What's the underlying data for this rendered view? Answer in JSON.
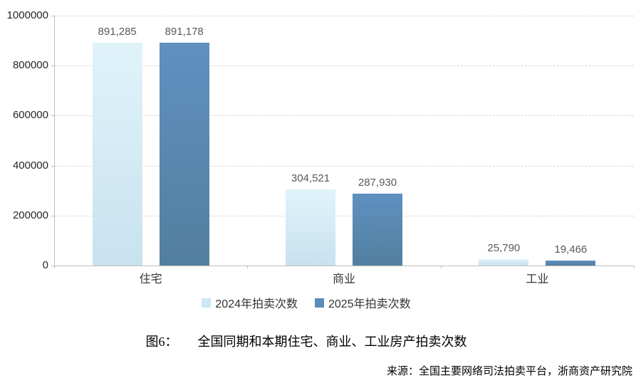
{
  "chart_data": {
    "type": "bar",
    "title": "图6：　全国同期和本期住宅、商业、工业房产拍卖次数",
    "caption_label": "图6：",
    "caption_text": "全国同期和本期住宅、商业、工业房产拍卖次数",
    "source": "来源：全国主要网络司法拍卖平台，浙商资产研究院",
    "categories": [
      "住宅",
      "商业",
      "工业"
    ],
    "series": [
      {
        "name": "2024年拍卖次数",
        "values": [
          891285,
          304521,
          25790
        ],
        "value_labels": [
          "891,285",
          "304,521",
          "25,790"
        ],
        "color_top": "#e0f3fa",
        "color_bottom": "#c8e2f0",
        "legend_color": "#cbe8f5"
      },
      {
        "name": "2025年拍卖次数",
        "values": [
          891178,
          287930,
          19466
        ],
        "value_labels": [
          "891,178",
          "287,930",
          "19,466"
        ],
        "color_top": "#5f90c0",
        "color_bottom": "#527f9f",
        "legend_color": "#5b8cba"
      }
    ],
    "ylim": [
      0,
      1000000
    ],
    "ytick_step": 200000,
    "ytick_labels": [
      "0",
      "200000",
      "400000",
      "600000",
      "800000",
      "1000000"
    ],
    "grid": "horizontal-dashed",
    "legend_position": "bottom",
    "colors": {
      "gridline": "#d8d8d8",
      "axis": "#bfbfbf",
      "value_label": "#595959",
      "tick_label": "#262626",
      "category_label": "#333333"
    }
  }
}
